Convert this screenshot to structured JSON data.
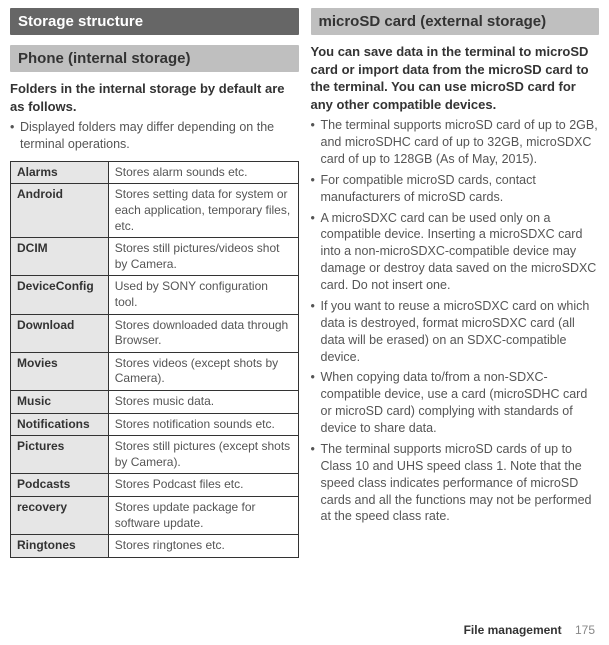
{
  "left": {
    "main_header": "Storage structure",
    "sub_header": "Phone (internal storage)",
    "intro": "Folders in the internal storage by default are as follows.",
    "bullet": "Displayed folders may differ depending on the terminal operations.",
    "table": [
      {
        "name": "Alarms",
        "desc": "Stores alarm sounds etc."
      },
      {
        "name": "Android",
        "desc": "Stores setting data for system or each application, temporary files, etc."
      },
      {
        "name": "DCIM",
        "desc": "Stores still pictures/videos shot by Camera."
      },
      {
        "name": "DeviceConfig",
        "desc": "Used by SONY configuration tool."
      },
      {
        "name": "Download",
        "desc": "Stores downloaded data through Browser."
      },
      {
        "name": "Movies",
        "desc": "Stores videos (except shots by Camera)."
      },
      {
        "name": "Music",
        "desc": "Stores music data."
      },
      {
        "name": "Notifications",
        "desc": "Stores notification sounds etc."
      },
      {
        "name": "Pictures",
        "desc": "Stores still pictures (except shots by Camera)."
      },
      {
        "name": "Podcasts",
        "desc": "Stores Podcast files etc."
      },
      {
        "name": "recovery",
        "desc": "Stores update package for software update."
      },
      {
        "name": "Ringtones",
        "desc": "Stores ringtones etc."
      }
    ]
  },
  "right": {
    "sub_header": "microSD card (external storage)",
    "intro": "You can save data in the terminal to microSD card or import data from the microSD card to the terminal. You can use microSD card for any other compatible devices.",
    "bullets": [
      "The terminal supports microSD card of up to 2GB, and microSDHC card of up to 32GB, microSDXC card of up to 128GB (As of May, 2015).",
      "For compatible microSD cards, contact manufacturers of microSD cards.",
      "A microSDXC card can be used only on a compatible device. Inserting a microSDXC card into a non-microSDXC-compatible device may damage or destroy data saved on the microSDXC card. Do not insert one.",
      "If you want to reuse a microSDXC card on which data is destroyed, format microSDXC card (all data will be erased) on an SDXC-compatible device.",
      "When copying data to/from a non-SDXC-compatible device, use a card (microSDHC card or microSD card) complying with standards of device to share data.",
      "The terminal supports microSD cards of up to Class 10 and UHS speed class 1. Note that the speed class indicates performance of microSD cards and all the functions may not be performed at the speed class rate."
    ]
  },
  "footer": {
    "section": "File management",
    "page": "175"
  }
}
